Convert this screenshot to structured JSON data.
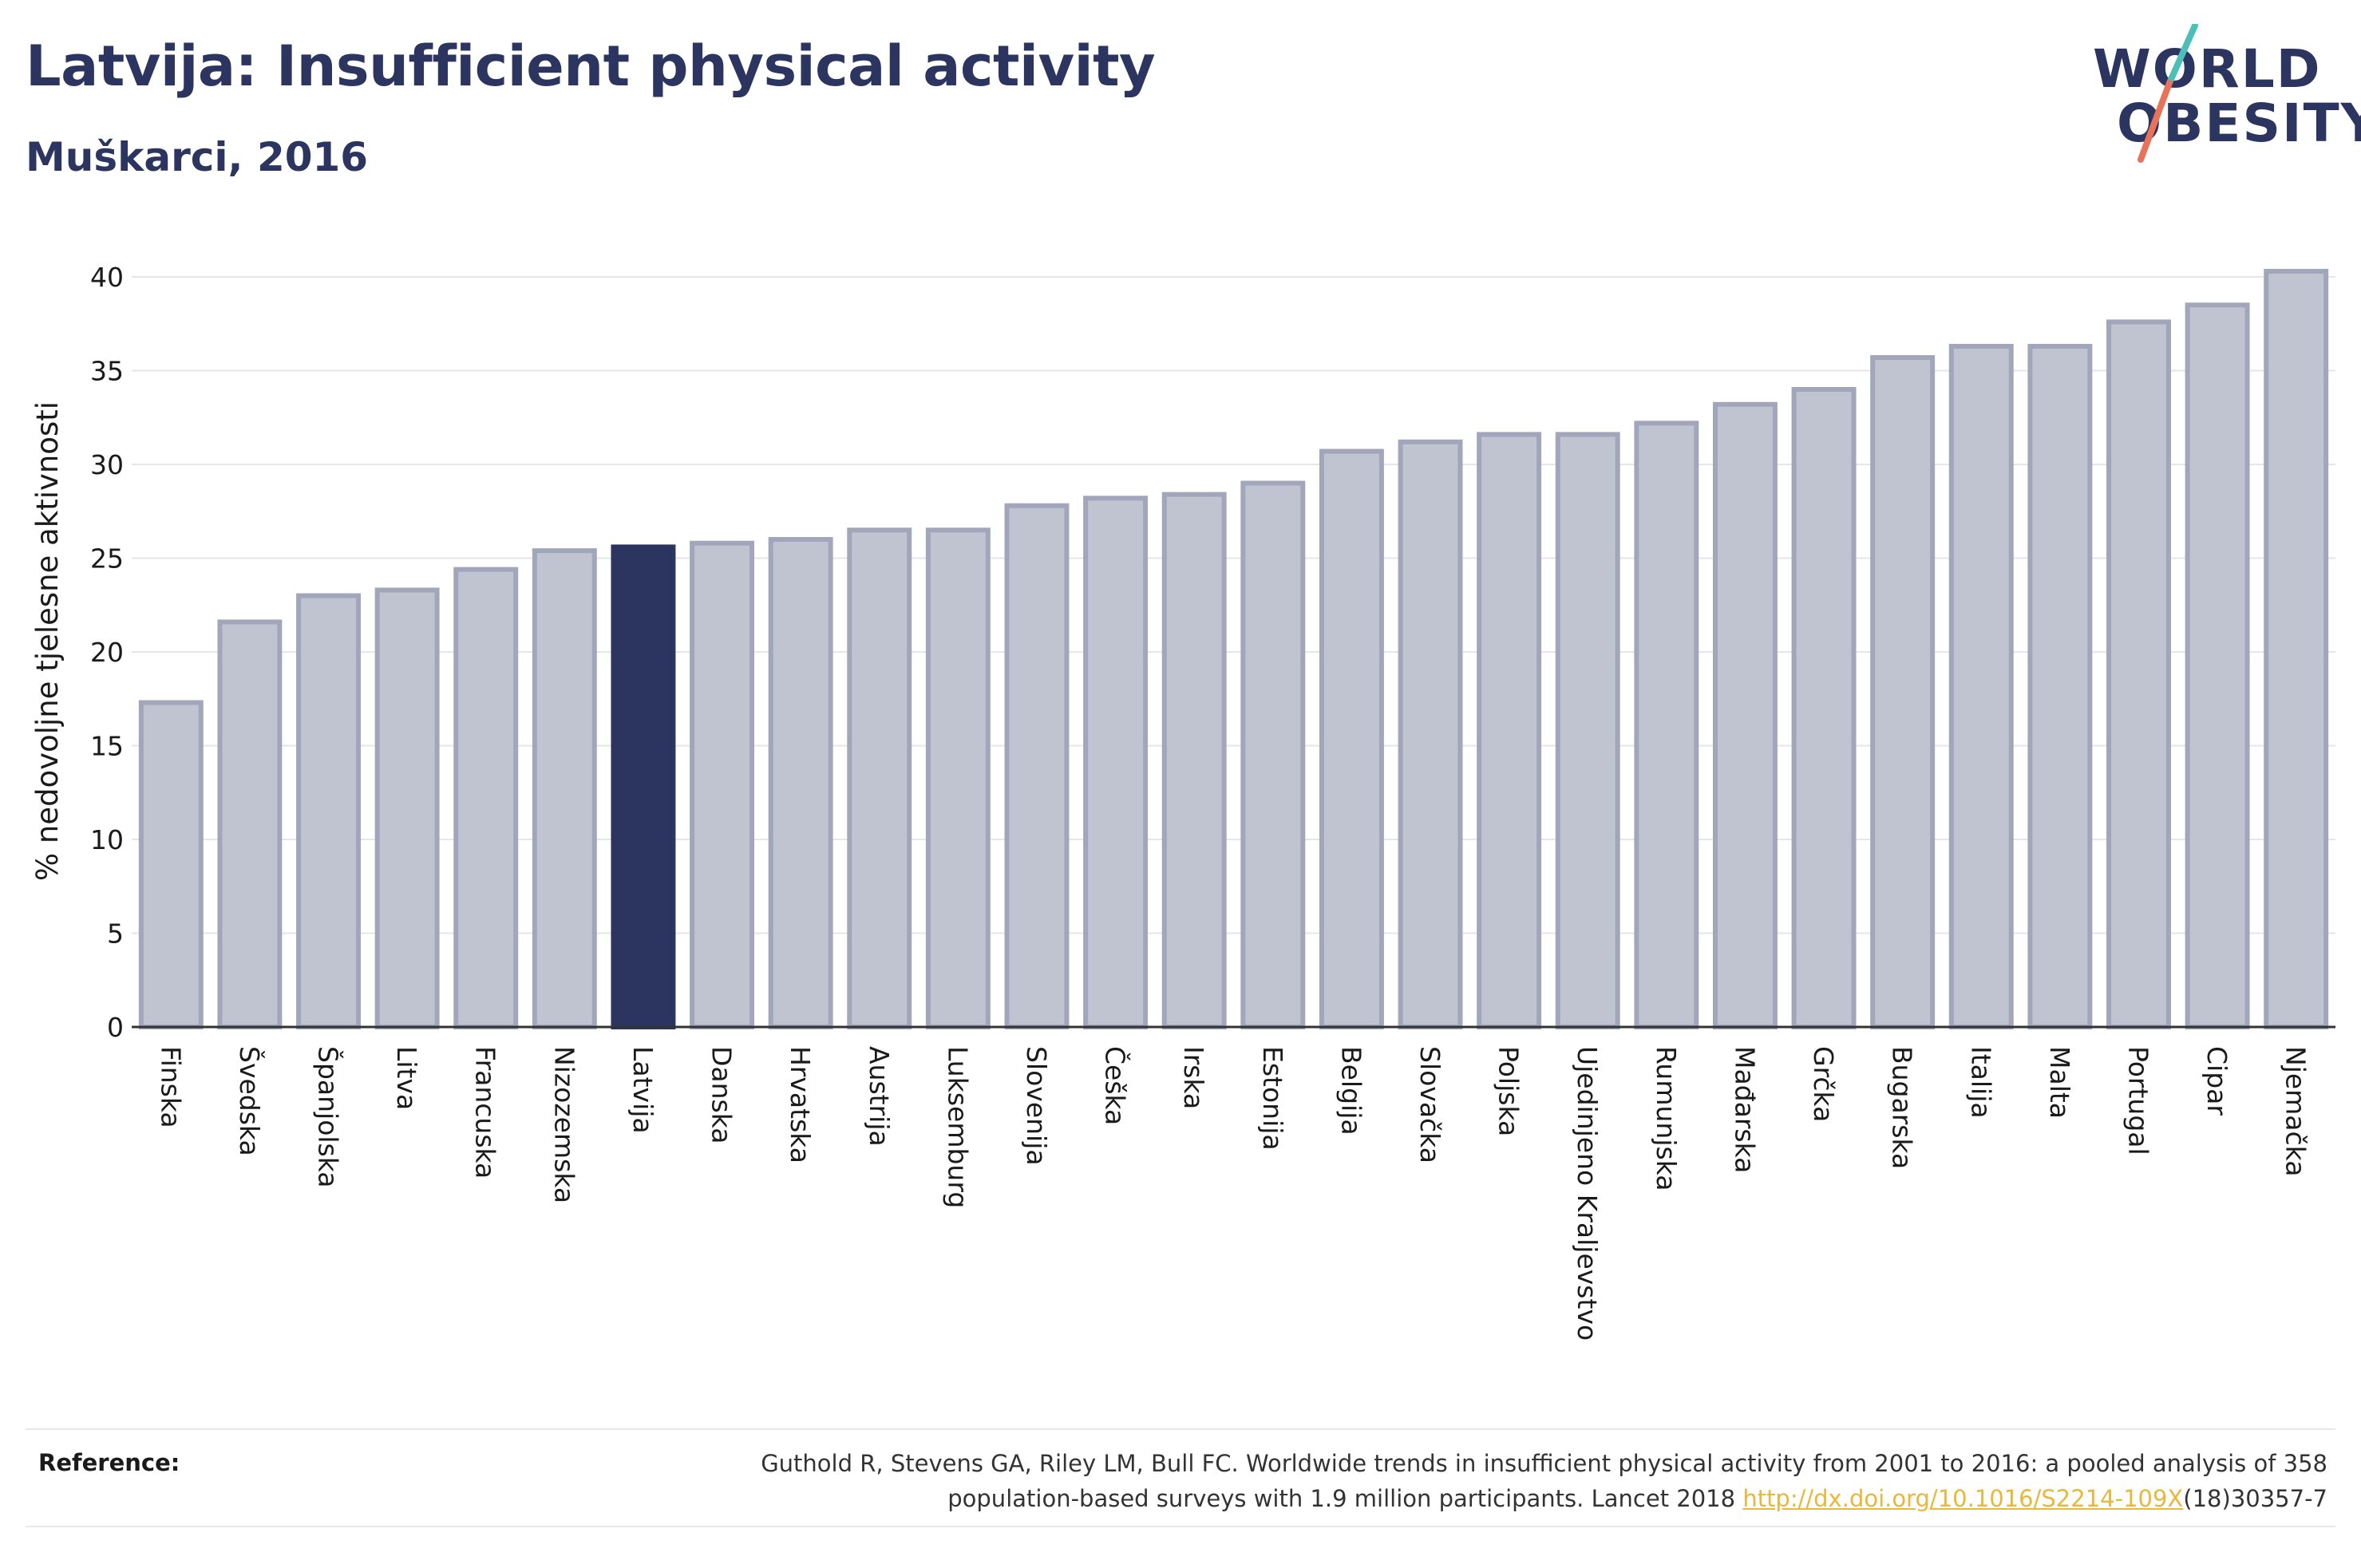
{
  "header": {
    "title": "Latvija: Insufficient physical activity",
    "subtitle": "Muškarci, 2016"
  },
  "logo": {
    "line1": "WORLD",
    "line2": "OBESITY",
    "slash_colors": [
      "#4bbfb8",
      "#e8735a"
    ]
  },
  "colors": {
    "highlight": "#2b3560",
    "bar_fill": "#c0c3d0",
    "bar_stroke": "#a2a6bb",
    "grid": "#e6e6ea",
    "axis": "#333333"
  },
  "chart_data": {
    "type": "bar",
    "ylabel": "% nedovoljne tjelesne aktivnosti",
    "ylim": [
      0,
      42
    ],
    "yticks": [
      0,
      5,
      10,
      15,
      20,
      25,
      30,
      35,
      40
    ],
    "grid": true,
    "highlight": "Latvija",
    "categories": [
      "Finska",
      "Švedska",
      "Španjolska",
      "Litva",
      "Francuska",
      "Nizozemska",
      "Latvija",
      "Danska",
      "Hrvatska",
      "Austrija",
      "Luksemburg",
      "Slovenija",
      "Češka",
      "Irska",
      "Estonija",
      "Belgija",
      "Slovačka",
      "Poljska",
      "Ujedinjeno Kraljevstvo",
      "Rumunjska",
      "Mađarska",
      "Grčka",
      "Bugarska",
      "Italija",
      "Malta",
      "Portugal",
      "Cipar",
      "Njemačka"
    ],
    "values": [
      17.3,
      21.6,
      23.0,
      23.3,
      24.4,
      25.4,
      25.6,
      25.8,
      26.0,
      26.5,
      26.5,
      27.8,
      28.2,
      28.4,
      29.0,
      30.7,
      31.2,
      31.6,
      31.6,
      32.2,
      33.2,
      34.0,
      35.7,
      36.3,
      36.3,
      37.6,
      38.5,
      40.3
    ]
  },
  "reference": {
    "label": "Reference:",
    "text_line1": "Guthold R, Stevens GA, Riley LM, Bull FC. Worldwide trends in insufficient physical activity from 2001 to 2016: a pooled analysis of 358",
    "text_line2_before": "population-based surveys with 1.9 million participants. Lancet 2018 ",
    "link": "http://dx.doi.org/10.1016/S2214-109X",
    "text_line2_after": "(18)30357-7"
  }
}
